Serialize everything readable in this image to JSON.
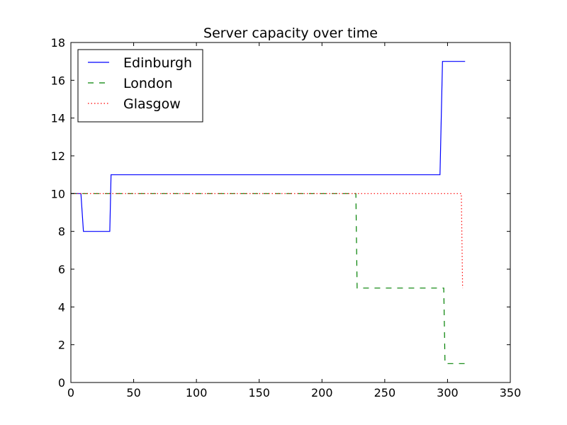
{
  "chart_data": {
    "type": "line",
    "title": "Server capacity over time",
    "xlabel": "",
    "ylabel": "",
    "xlim": [
      0,
      350
    ],
    "ylim": [
      0,
      18
    ],
    "xticks": [
      0,
      50,
      100,
      150,
      200,
      250,
      300,
      350
    ],
    "yticks": [
      0,
      2,
      4,
      6,
      8,
      10,
      12,
      14,
      16,
      18
    ],
    "grid": false,
    "legend_position": "top-left",
    "series": [
      {
        "name": "Edinburgh",
        "color": "#0000ff",
        "style": "solid",
        "x": [
          0,
          8,
          10,
          31,
          32,
          294,
          296,
          314
        ],
        "y": [
          10,
          10,
          8,
          8,
          11,
          11,
          17,
          17
        ]
      },
      {
        "name": "London",
        "color": "#008000",
        "style": "dashed",
        "x": [
          0,
          227,
          228,
          297,
          298,
          314
        ],
        "y": [
          10,
          10,
          5,
          5,
          1,
          1
        ]
      },
      {
        "name": "Glasgow",
        "color": "#ff0000",
        "style": "dotted",
        "x": [
          0,
          311,
          312
        ],
        "y": [
          10,
          10,
          5
        ]
      }
    ]
  }
}
